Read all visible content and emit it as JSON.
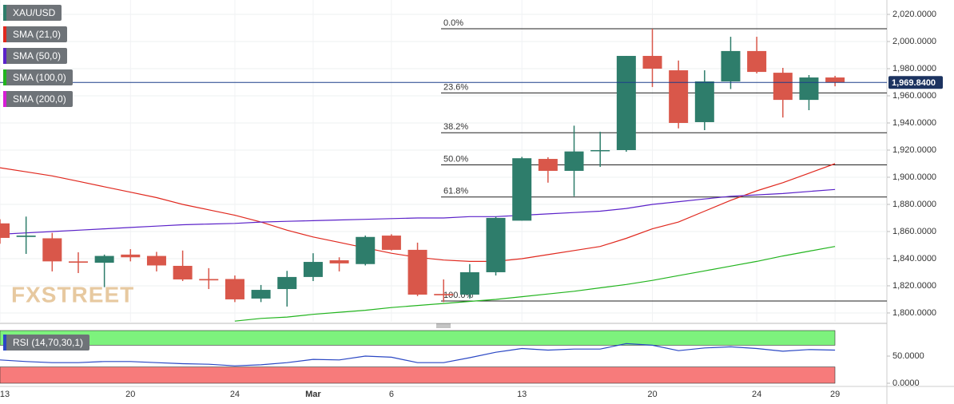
{
  "chart_data": [
    {
      "type": "candlestick",
      "name": "XAU/USD",
      "up_color": "#2e7d6b",
      "down_color": "#d9574a",
      "categories": [
        "13",
        null,
        null,
        null,
        null,
        "20",
        null,
        null,
        null,
        "24",
        null,
        null,
        "Mar",
        null,
        null,
        "6",
        null,
        null,
        null,
        null,
        "13",
        null,
        null,
        null,
        null,
        "20",
        null,
        null,
        null,
        "24",
        null,
        null,
        "29"
      ],
      "open": [
        1866,
        1856,
        1855,
        1838,
        1837,
        1843,
        1842,
        1834.7,
        1825,
        1825,
        1810.6,
        1817.6,
        1826.5,
        1838.8,
        1836,
        1857,
        1846.5,
        1814,
        1813.5,
        1830,
        1868,
        1913.5,
        1904.7,
        1919.5,
        1920,
        1989.4,
        1978.8,
        1940.6,
        1970.6,
        1993,
        1977,
        1957,
        1973.5
      ],
      "high": [
        1869,
        1871,
        1859,
        1844.7,
        1843,
        1847,
        1845,
        1846,
        1833,
        1827.6,
        1820.6,
        1831,
        1844,
        1841,
        1857,
        1858,
        1851.8,
        1824.7,
        1836,
        1871,
        1915,
        1914.7,
        1938,
        1933.5,
        1989.4,
        2009.4,
        1986,
        1978.8,
        2003.5,
        2003.5,
        1980.6,
        1975.3,
        1974.7
      ],
      "low": [
        1851,
        1843.5,
        1830.6,
        1829.4,
        1819,
        1838,
        1830.6,
        1823.5,
        1817.6,
        1808,
        1808,
        1804.7,
        1823.5,
        1830.6,
        1835,
        1846,
        1812.4,
        1808,
        1810.6,
        1827.6,
        1868,
        1896,
        1886,
        1907.6,
        1918.8,
        1966.5,
        1936,
        1934.7,
        1965,
        1976.5,
        1944,
        1949.4,
        1967
      ],
      "close": [
        1855.3,
        1857,
        1838,
        1837,
        1842,
        1841,
        1835,
        1824.7,
        1824,
        1810,
        1817,
        1826.5,
        1837.6,
        1836.5,
        1856,
        1846.5,
        1813.5,
        1813,
        1830,
        1870,
        1914,
        1904.7,
        1919,
        1920,
        1989.4,
        1980,
        1940,
        1970.6,
        1993,
        1977.6,
        1957,
        1973.5,
        1969.84
      ],
      "series": [
        {
          "name": "SMA (21,0)",
          "color": "#e0281e",
          "values": [
            1907,
            1904,
            1901,
            1897,
            1893,
            1889,
            1885,
            1880,
            1876,
            1872,
            1867,
            1861,
            1856,
            1852,
            1848,
            1844,
            1841,
            1839,
            1838,
            1838,
            1840,
            1843,
            1846,
            1849,
            1855,
            1862,
            1867,
            1875,
            1883,
            1890,
            1896,
            1903,
            1910
          ]
        },
        {
          "name": "SMA (50,0)",
          "color": "#5b22c9",
          "values": [
            1858,
            1859,
            1860,
            1861,
            1862,
            1863,
            1864,
            1865,
            1865.5,
            1866,
            1867,
            1867.5,
            1868,
            1868.5,
            1869,
            1869.5,
            1870,
            1870,
            1871,
            1871,
            1872,
            1873,
            1874,
            1875,
            1877,
            1880,
            1882,
            1884,
            1886,
            1887,
            1888,
            1889.5,
            1891
          ]
        },
        {
          "name": "SMA (100,0)",
          "color": "#22b41e",
          "values": [
            null,
            null,
            null,
            null,
            null,
            null,
            null,
            null,
            null,
            1794,
            1796,
            1797,
            1799,
            1800.5,
            1802,
            1804,
            1805.5,
            1807,
            1808.5,
            1810,
            1812,
            1814,
            1816,
            1818.5,
            1821,
            1824,
            1827.5,
            1831,
            1834.5,
            1838,
            1842,
            1845.5,
            1849
          ]
        },
        {
          "name": "SMA (200,0)",
          "color": "#d61ed6"
        }
      ],
      "last_price": {
        "value": 1969.84,
        "label": "1,969.8400"
      },
      "fibonacci": [
        {
          "price": 2009.4,
          "label": "0.0%"
        },
        {
          "price": 1962.1,
          "label": "23.6%"
        },
        {
          "price": 1932.8,
          "label": "38.2%"
        },
        {
          "price": 1909.1,
          "label": "50.0%"
        },
        {
          "price": 1885.4,
          "label": "61.8%"
        },
        {
          "price": 1808.8,
          "label": "100.0%"
        }
      ],
      "ylim": [
        1793.5,
        2030.6
      ],
      "yticks": [
        {
          "value": 1800,
          "label": "1,800.0000"
        },
        {
          "value": 1820,
          "label": "1,820.0000"
        },
        {
          "value": 1840,
          "label": "1,840.0000"
        },
        {
          "value": 1860,
          "label": "1,860.0000"
        },
        {
          "value": 1880,
          "label": "1,880.0000"
        },
        {
          "value": 1900,
          "label": "1,900.0000"
        },
        {
          "value": 1920,
          "label": "1,920.0000"
        },
        {
          "value": 1940,
          "label": "1,940.0000"
        },
        {
          "value": 1960,
          "label": "1,960.0000"
        },
        {
          "value": 1980,
          "label": "1,980.0000"
        },
        {
          "value": 2000,
          "label": "2,000.0000"
        },
        {
          "value": 2020,
          "label": "2,020.0000"
        }
      ],
      "grid": true,
      "watermark": "FXSTREET"
    },
    {
      "type": "line",
      "name": "RSI (14,70,30,1)",
      "color": "#2a47c4",
      "values": [
        43,
        40,
        38,
        38,
        40,
        40,
        38,
        36,
        35,
        32,
        34,
        38,
        44,
        43,
        50,
        48,
        38,
        38,
        47,
        57,
        64,
        61,
        63,
        63,
        73,
        70,
        60,
        65,
        67,
        64,
        59,
        62,
        61
      ],
      "overbought": 70,
      "oversold": 30,
      "overbought_color": "#7df27d",
      "oversold_color": "#f77b7b",
      "ylim": [
        0,
        100
      ],
      "yticks": [
        {
          "value": 50,
          "label": "50.0000"
        },
        {
          "value": 0,
          "label": "0.0000"
        }
      ]
    }
  ]
}
